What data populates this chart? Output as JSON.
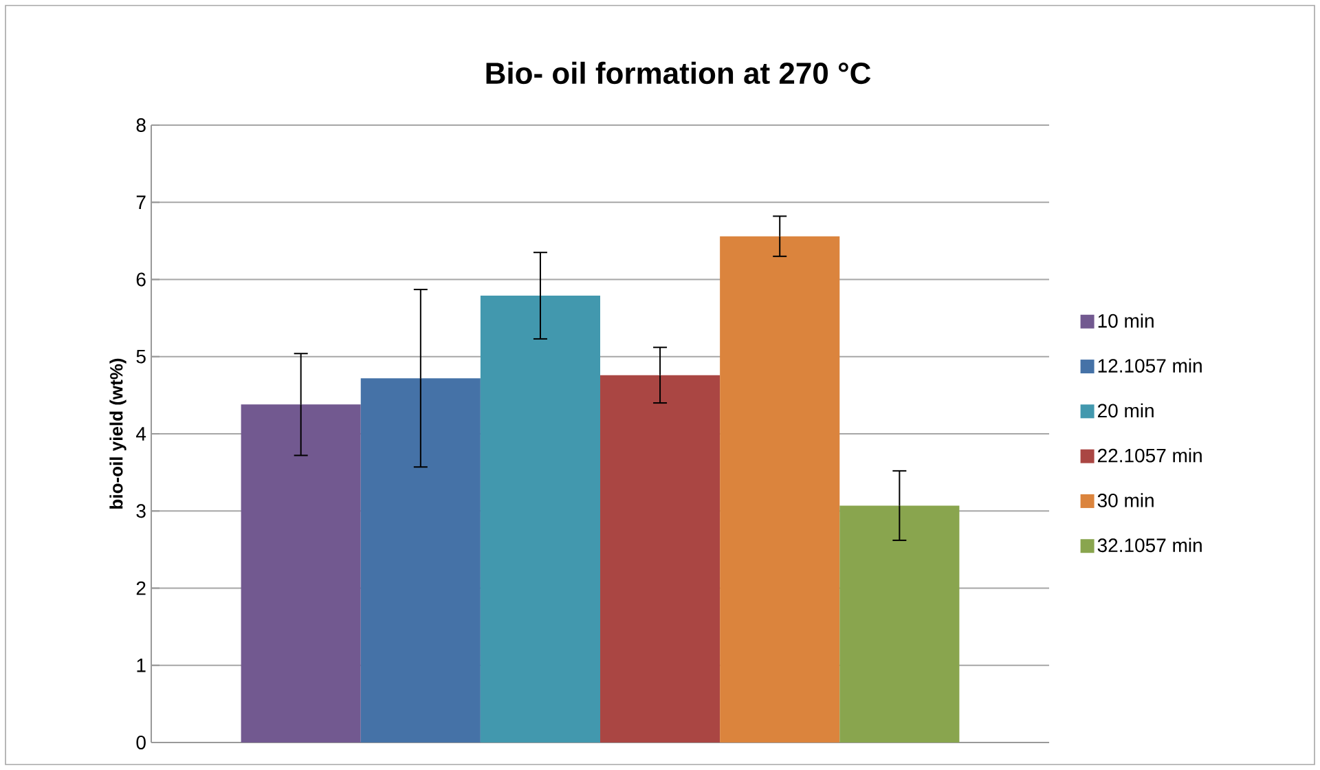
{
  "chart_data": {
    "type": "bar",
    "title": "Bio- oil formation at 270 °C",
    "ylabel": "bio-oil yield (wt%)",
    "categories": [
      null
    ],
    "series": [
      {
        "name": "10 min",
        "color": "#725990",
        "values": [
          4.38
        ],
        "errors": [
          0.66
        ]
      },
      {
        "name": "12.1057 min",
        "color": "#4572a7",
        "values": [
          4.72
        ],
        "errors": [
          1.15
        ]
      },
      {
        "name": "20 min",
        "color": "#4298ae",
        "values": [
          5.79
        ],
        "errors": [
          0.56
        ]
      },
      {
        "name": "22.1057 min",
        "color": "#aa4643",
        "values": [
          4.76
        ],
        "errors": [
          0.36
        ]
      },
      {
        "name": "30 min",
        "color": "#db843d",
        "values": [
          6.56
        ],
        "errors": [
          0.26
        ]
      },
      {
        "name": "32.1057 min",
        "color": "#89a54e",
        "values": [
          3.07
        ],
        "errors": [
          0.45
        ]
      }
    ],
    "ylim": [
      0,
      8
    ],
    "yticks": [
      0,
      1,
      2,
      3,
      4,
      5,
      6,
      7,
      8
    ],
    "grid": "y",
    "legend": "right",
    "tick_labels": "y"
  }
}
